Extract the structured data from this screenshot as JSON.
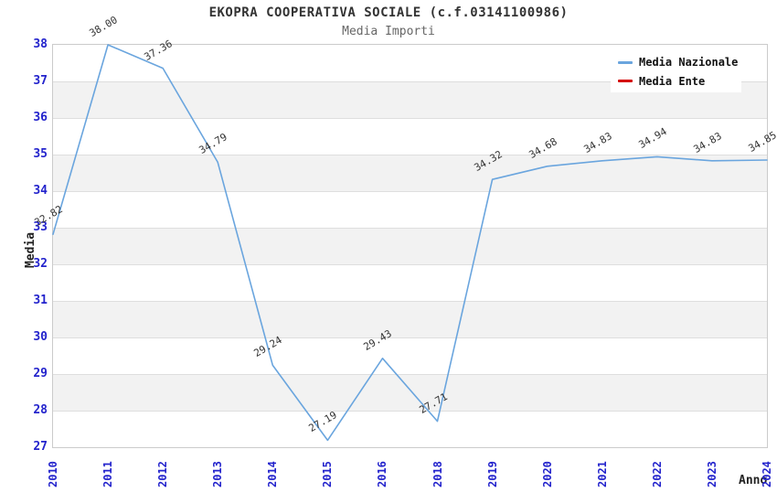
{
  "header": {
    "title": "EKOPRA COOPERATIVA SOCIALE (c.f.03141100986)",
    "subtitle": "Media Importi"
  },
  "chart_data": {
    "type": "line",
    "title": "EKOPRA COOPERATIVA SOCIALE (c.f.03141100986)",
    "subtitle": "Media Importi",
    "xlabel": "Anno",
    "ylabel": "Media",
    "categories": [
      "2010",
      "2011",
      "2012",
      "2013",
      "2014",
      "2015",
      "2016",
      "2018",
      "2019",
      "2020",
      "2021",
      "2022",
      "2023",
      "2024"
    ],
    "series": [
      {
        "name": "Media Nazionale",
        "color": "#6aa5de",
        "values": [
          32.82,
          38.0,
          37.36,
          34.79,
          29.24,
          27.19,
          29.43,
          27.71,
          34.32,
          34.68,
          34.83,
          34.94,
          34.83,
          34.85
        ]
      },
      {
        "name": "Media Ente",
        "color": "#d40000",
        "values": []
      }
    ],
    "ylim": [
      27,
      38
    ],
    "yticks": [
      27,
      28,
      29,
      30,
      31,
      32,
      33,
      34,
      35,
      36,
      37,
      38
    ],
    "grid": "horizontal-bands",
    "band_colors": [
      "#ffffff",
      "#f2f2f2"
    ],
    "tick_label_color": "#2323cc",
    "legend_position": "top-right",
    "data_labels": true
  }
}
